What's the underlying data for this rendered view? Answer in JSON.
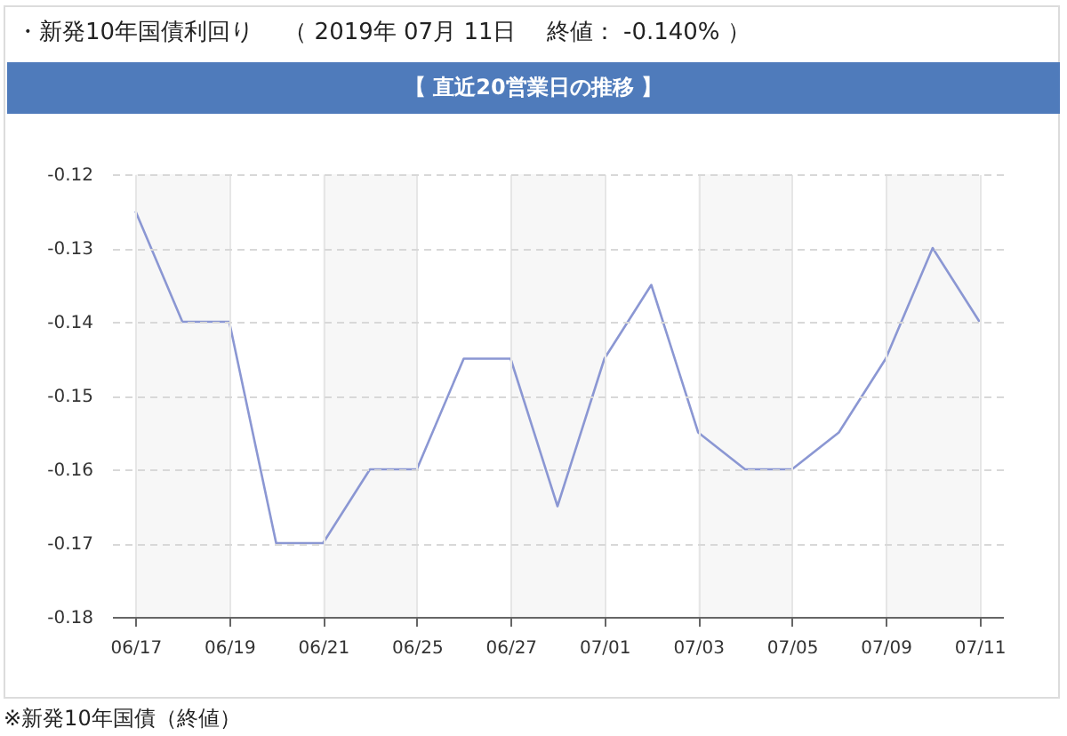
{
  "chart_data": {
    "type": "line",
    "title": "・新発10年国債利回り　 （ 2019年 07月 11日　 終値： -0.140% ）",
    "subtitle": "【 直近20営業日の推移 】",
    "annotations": [
      "※新発10年国債（終値）"
    ],
    "categories": [
      "06/17",
      null,
      "06/19",
      null,
      "06/21",
      null,
      "06/25",
      null,
      "06/27",
      null,
      "07/01",
      null,
      "07/03",
      null,
      "07/05",
      null,
      "07/09",
      null,
      "07/11"
    ],
    "values": [
      -0.125,
      -0.14,
      -0.14,
      -0.17,
      -0.17,
      -0.16,
      -0.16,
      -0.145,
      -0.145,
      -0.165,
      -0.145,
      -0.135,
      -0.155,
      -0.16,
      -0.16,
      -0.155,
      -0.145,
      -0.13,
      -0.14
    ],
    "color": "#8b97d3",
    "ylim": [
      -0.18,
      -0.12
    ],
    "yticks": [
      -0.18,
      -0.17,
      -0.16,
      -0.15,
      -0.14,
      -0.13,
      -0.12
    ],
    "grid": true,
    "bands": [
      {
        "axis": "x",
        "from": "06/17",
        "to": "06/19",
        "color": "#f7f7f7"
      },
      {
        "axis": "x",
        "from": "06/21",
        "to": "06/25",
        "color": "#f7f7f7"
      },
      {
        "axis": "x",
        "from": "06/27",
        "to": "07/01",
        "color": "#f7f7f7"
      },
      {
        "axis": "x",
        "from": "07/03",
        "to": "07/05",
        "color": "#f7f7f7"
      },
      {
        "axis": "x",
        "from": "07/09",
        "to": "07/11",
        "color": "#f7f7f7"
      }
    ]
  }
}
